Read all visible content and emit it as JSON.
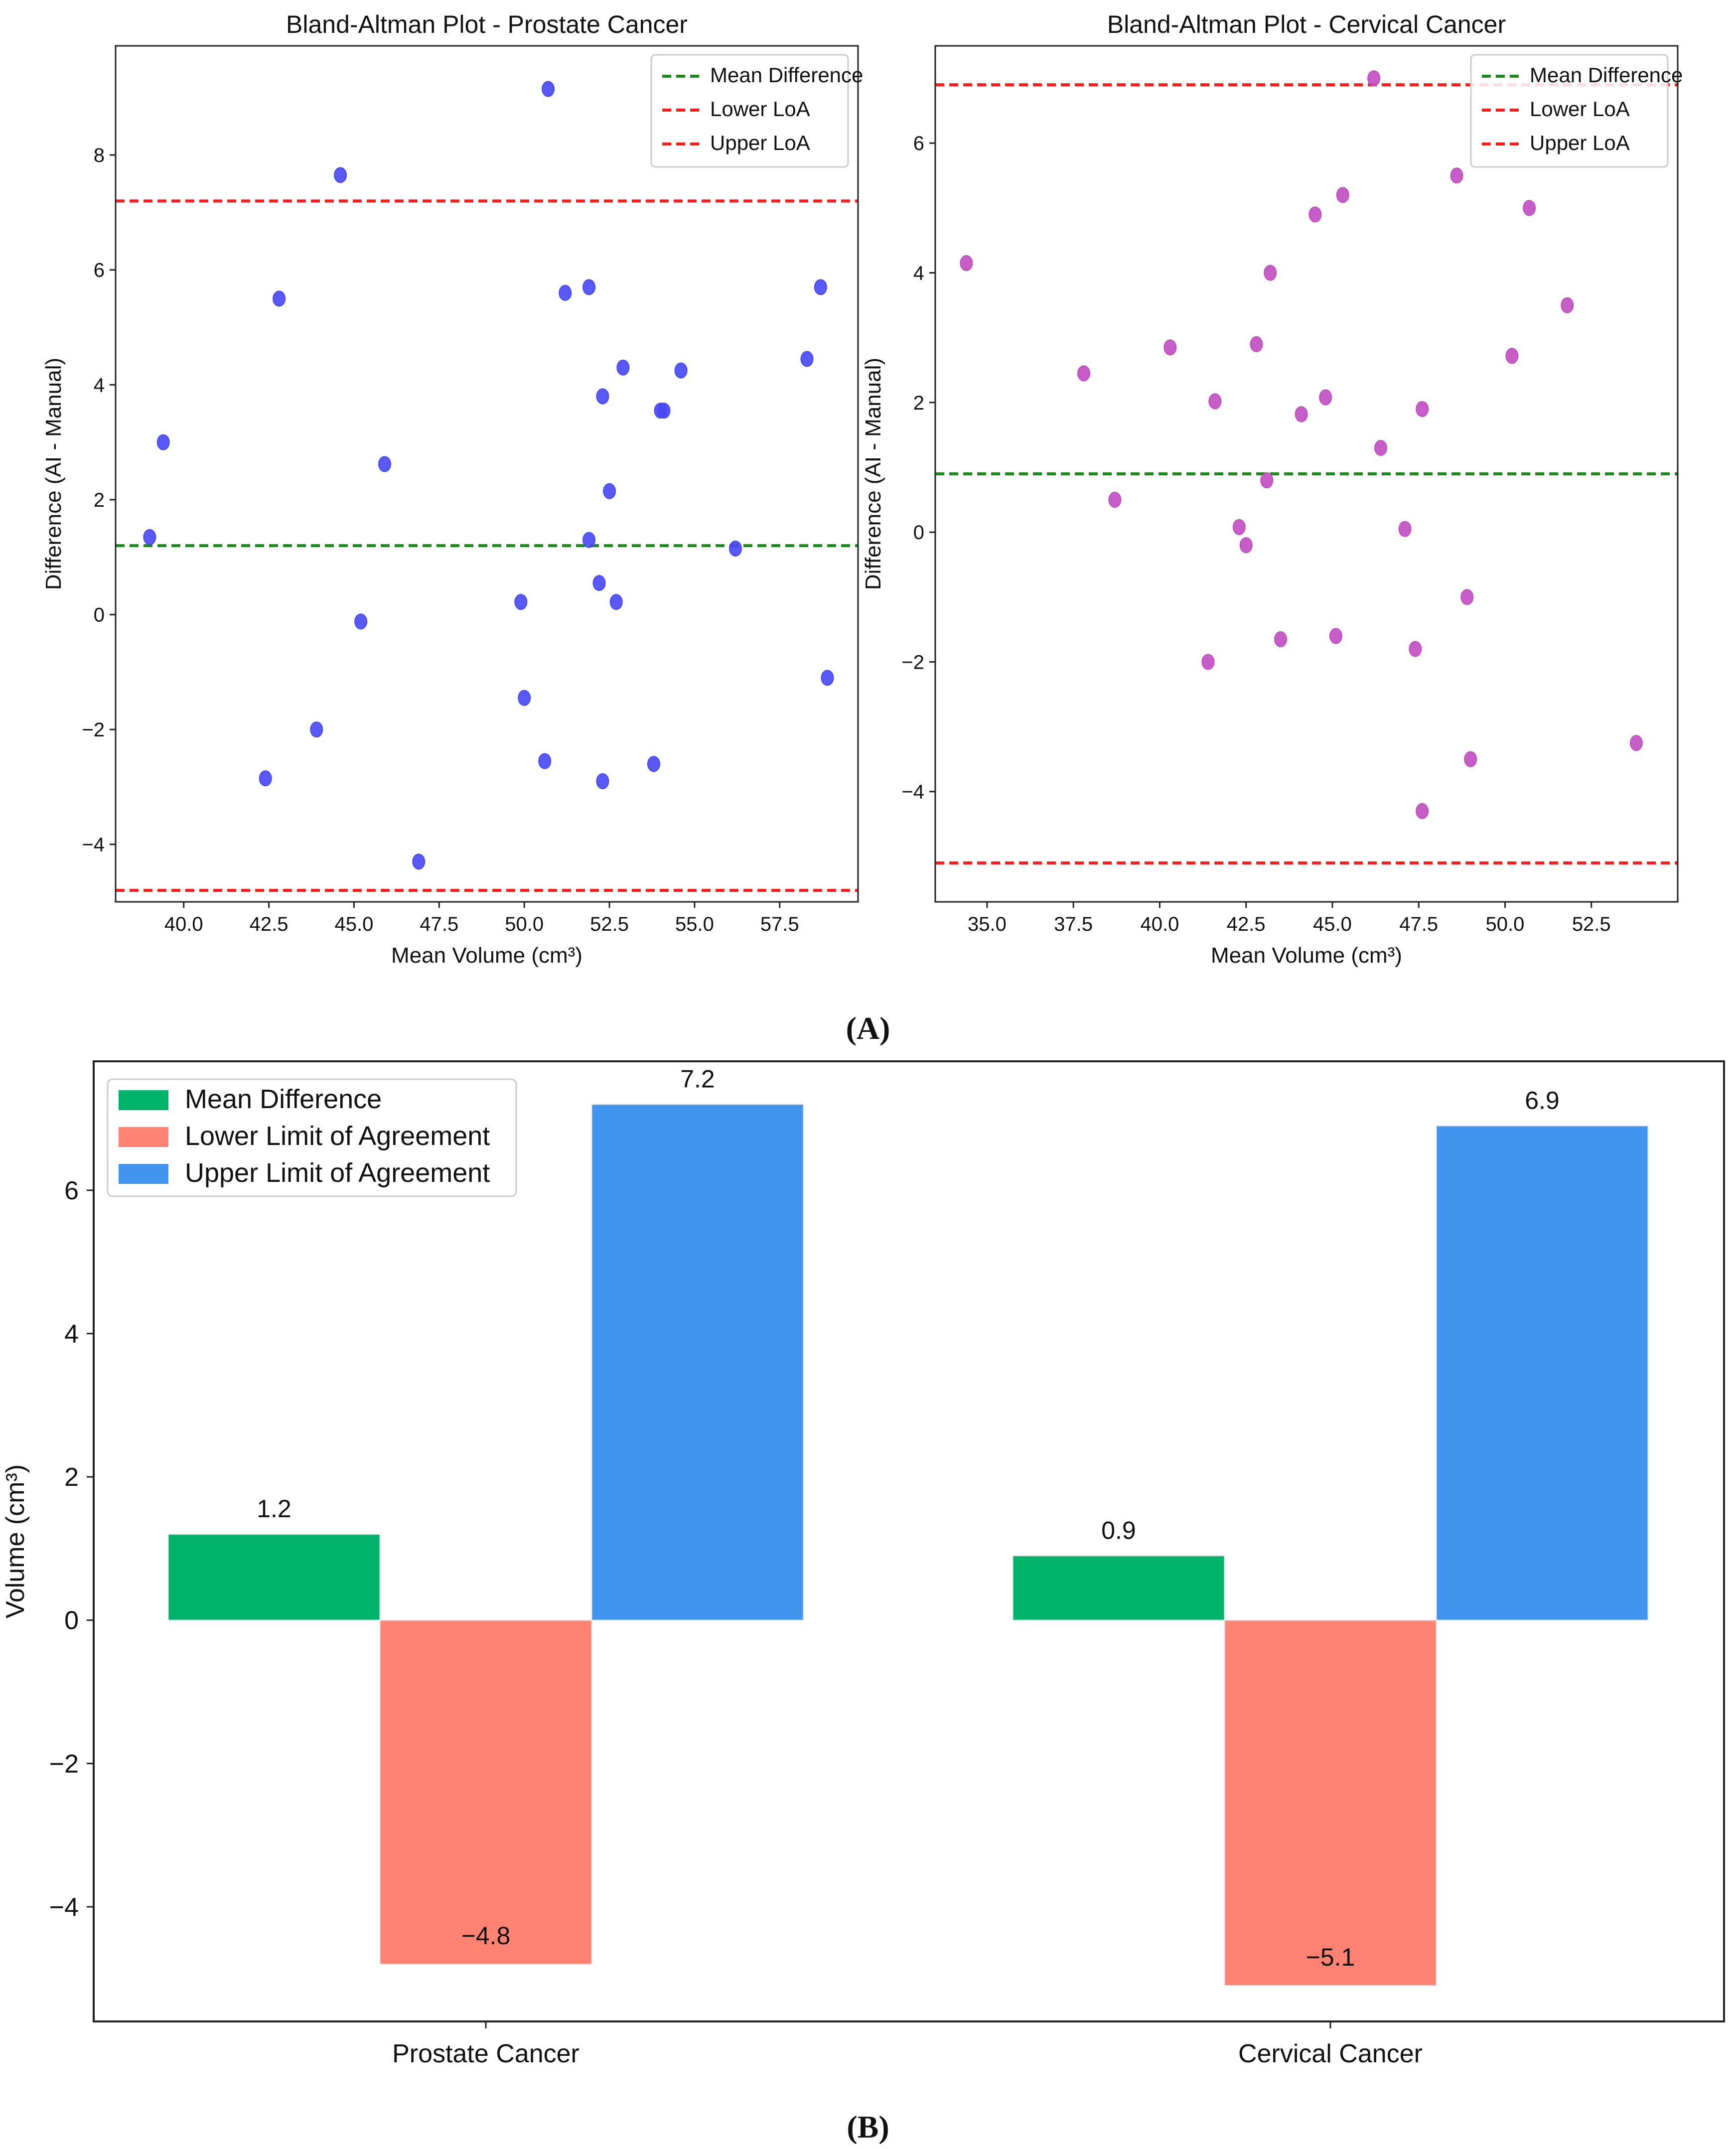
{
  "figure": {
    "panel_a_label": "A",
    "panel_b_label": "B"
  },
  "colors": {
    "mean_line": "#1a8a1a",
    "loa_line": "#ff1a1a",
    "prostate_points": "#4747f5",
    "cervical_points": "#c14cc1",
    "bar_mean": "#00b36b",
    "bar_lower": "#ff8272",
    "bar_upper": "#4195ef"
  },
  "chart_data": [
    {
      "type": "scatter",
      "title": "Bland-Altman Plot - Prostate Cancer",
      "xlabel": "Mean Volume (cm³)",
      "ylabel": "Difference (AI - Manual)",
      "xlim": [
        38.0,
        59.8
      ],
      "ylim": [
        -5.0,
        9.9
      ],
      "xticks": [
        40.0,
        42.5,
        45.0,
        47.5,
        50.0,
        52.5,
        55.0,
        57.5
      ],
      "xtick_labels": [
        "40.0",
        "42.5",
        "45.0",
        "47.5",
        "50.0",
        "52.5",
        "55.0",
        "57.5"
      ],
      "yticks": [
        -4,
        -2,
        0,
        2,
        4,
        6,
        8
      ],
      "ytick_labels": [
        "−4",
        "−2",
        "0",
        "2",
        "4",
        "6",
        "8"
      ],
      "mean_difference": 1.2,
      "lower_loa": -4.8,
      "upper_loa": 7.2,
      "legend": [
        "Mean Difference",
        "Lower LoA",
        "Upper LoA"
      ],
      "legend_position": "top-right",
      "points": [
        [
          39.0,
          1.35
        ],
        [
          39.4,
          3.0
        ],
        [
          42.4,
          -2.85
        ],
        [
          42.8,
          5.5
        ],
        [
          43.9,
          -2.0
        ],
        [
          44.6,
          7.65
        ],
        [
          45.2,
          -0.12
        ],
        [
          45.9,
          2.62
        ],
        [
          46.9,
          -4.3
        ],
        [
          49.9,
          0.22
        ],
        [
          50.0,
          -1.45
        ],
        [
          50.6,
          -2.55
        ],
        [
          50.7,
          9.15
        ],
        [
          51.2,
          5.6
        ],
        [
          51.9,
          1.3
        ],
        [
          51.9,
          5.7
        ],
        [
          52.2,
          0.55
        ],
        [
          52.3,
          -2.9
        ],
        [
          52.3,
          3.8
        ],
        [
          52.5,
          2.15
        ],
        [
          52.7,
          0.22
        ],
        [
          52.9,
          4.3
        ],
        [
          53.8,
          -2.6
        ],
        [
          54.0,
          3.55
        ],
        [
          54.1,
          3.55
        ],
        [
          54.6,
          4.25
        ],
        [
          56.2,
          1.15
        ],
        [
          58.3,
          4.45
        ],
        [
          58.7,
          5.7
        ],
        [
          58.9,
          -1.1
        ]
      ]
    },
    {
      "type": "scatter",
      "title": "Bland-Altman Plot - Cervical Cancer",
      "xlabel": "Mean Volume (cm³)",
      "ylabel": "Difference (AI - Manual)",
      "xlim": [
        33.5,
        55.0
      ],
      "ylim": [
        -5.7,
        7.5
      ],
      "xticks": [
        35.0,
        37.5,
        40.0,
        42.5,
        45.0,
        47.5,
        50.0,
        52.5
      ],
      "xtick_labels": [
        "35.0",
        "37.5",
        "40.0",
        "42.5",
        "45.0",
        "47.5",
        "50.0",
        "52.5"
      ],
      "yticks": [
        -4,
        -2,
        0,
        2,
        4,
        6
      ],
      "ytick_labels": [
        "−4",
        "−2",
        "0",
        "2",
        "4",
        "6"
      ],
      "mean_difference": 0.9,
      "lower_loa": -5.1,
      "upper_loa": 6.9,
      "legend": [
        "Mean Difference",
        "Lower LoA",
        "Upper LoA"
      ],
      "legend_position": "top-right",
      "points": [
        [
          34.4,
          4.15
        ],
        [
          37.8,
          2.45
        ],
        [
          38.7,
          0.5
        ],
        [
          40.3,
          2.85
        ],
        [
          41.4,
          -2.0
        ],
        [
          41.6,
          2.02
        ],
        [
          42.3,
          0.08
        ],
        [
          42.5,
          -0.2
        ],
        [
          42.8,
          2.9
        ],
        [
          43.1,
          0.8
        ],
        [
          43.2,
          4.0
        ],
        [
          43.5,
          -1.65
        ],
        [
          44.1,
          1.82
        ],
        [
          44.5,
          4.9
        ],
        [
          44.8,
          2.08
        ],
        [
          45.1,
          -1.6
        ],
        [
          45.3,
          5.2
        ],
        [
          46.2,
          7.0
        ],
        [
          46.4,
          1.3
        ],
        [
          47.1,
          0.05
        ],
        [
          47.4,
          -1.8
        ],
        [
          47.6,
          1.9
        ],
        [
          47.6,
          -4.3
        ],
        [
          48.6,
          5.5
        ],
        [
          48.9,
          -1.0
        ],
        [
          49.0,
          -3.5
        ],
        [
          50.2,
          2.72
        ],
        [
          50.7,
          5.0
        ],
        [
          51.8,
          3.5
        ],
        [
          53.8,
          -3.25
        ]
      ]
    },
    {
      "type": "bar",
      "categories": [
        "Prostate Cancer",
        "Cervical Cancer"
      ],
      "series": [
        {
          "name": "Mean Difference",
          "values": [
            1.2,
            0.9
          ]
        },
        {
          "name": "Lower Limit of Agreement",
          "values": [
            -4.8,
            -5.1
          ]
        },
        {
          "name": "Upper Limit of Agreement",
          "values": [
            7.2,
            6.9
          ]
        }
      ],
      "data_labels": [
        [
          "1.2",
          "0.9"
        ],
        [
          "−4.8",
          "−5.1"
        ],
        [
          "7.2",
          "6.9"
        ]
      ],
      "title": "",
      "xlabel": "",
      "ylabel": "Volume (cm³)",
      "ylim": [
        -5.6,
        7.8
      ],
      "yticks": [
        -4,
        -2,
        0,
        2,
        4,
        6
      ],
      "ytick_labels": [
        "−4",
        "−2",
        "0",
        "2",
        "4",
        "6"
      ],
      "legend_position": "top-left"
    }
  ]
}
